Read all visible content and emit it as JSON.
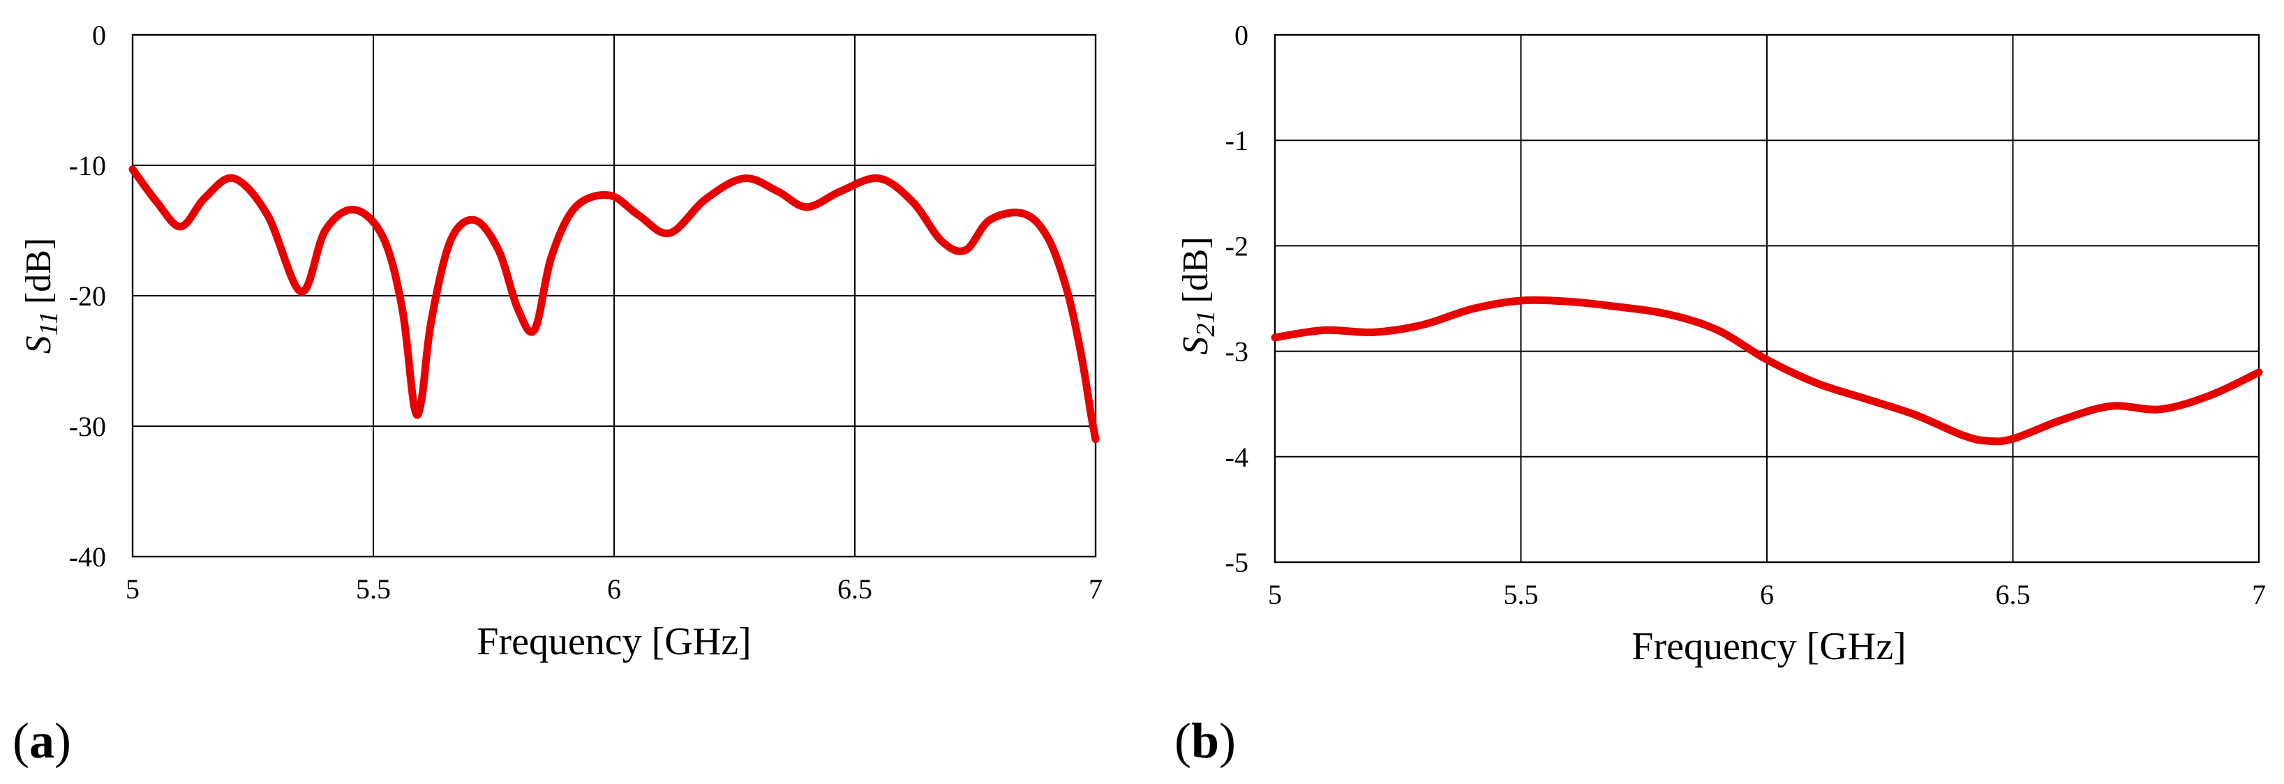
{
  "chart_data": [
    {
      "type": "line",
      "panel_label": "(a)",
      "panel_letter": "a",
      "ylabel_symbol": "S",
      "ylabel_subscript": "11",
      "ylabel_unit": "[dB]",
      "xlabel": "Frequency [GHz]",
      "xlim": [
        5,
        7
      ],
      "ylim": [
        -40,
        0
      ],
      "xticks": [
        5,
        5.5,
        6,
        6.5,
        7
      ],
      "xtick_labels": [
        "5",
        "5.5",
        "6",
        "6.5",
        "7"
      ],
      "yticks": [
        0,
        -10,
        -20,
        -30,
        -40
      ],
      "ytick_labels": [
        "0",
        "-10",
        "-20",
        "-30",
        "-40"
      ],
      "grid": true,
      "series": [
        {
          "color": "#e60000",
          "x": [
            5.0,
            5.05,
            5.1,
            5.15,
            5.21,
            5.28,
            5.35,
            5.4,
            5.46,
            5.52,
            5.56,
            5.585,
            5.6,
            5.62,
            5.66,
            5.71,
            5.76,
            5.8,
            5.835,
            5.87,
            5.92,
            5.99,
            6.05,
            6.115,
            6.19,
            6.27,
            6.34,
            6.4,
            6.47,
            6.55,
            6.62,
            6.68,
            6.73,
            6.78,
            6.85,
            6.9,
            6.94,
            6.97,
            6.99,
            7.0
          ],
          "y": [
            -10.3,
            -12.8,
            -14.7,
            -12.5,
            -11.0,
            -13.8,
            -19.7,
            -15.0,
            -13.4,
            -15.5,
            -21.0,
            -28.5,
            -28.0,
            -22.0,
            -15.8,
            -14.2,
            -16.5,
            -21.0,
            -22.6,
            -17.0,
            -13.2,
            -12.3,
            -13.8,
            -15.2,
            -12.6,
            -11.0,
            -12.0,
            -13.2,
            -12.0,
            -11.0,
            -12.8,
            -15.8,
            -16.5,
            -14.2,
            -13.7,
            -15.5,
            -19.5,
            -24.5,
            -29.0,
            -31.0
          ]
        }
      ]
    },
    {
      "type": "line",
      "panel_label": "(b)",
      "panel_letter": "b",
      "ylabel_symbol": "S",
      "ylabel_subscript": "21",
      "ylabel_unit": "[dB]",
      "xlabel": "Frequency [GHz]",
      "xlim": [
        5,
        7
      ],
      "ylim": [
        -5,
        0
      ],
      "xticks": [
        5,
        5.5,
        6,
        6.5,
        7
      ],
      "xtick_labels": [
        "5",
        "5.5",
        "6",
        "6.5",
        "7"
      ],
      "yticks": [
        0,
        -1,
        -2,
        -3,
        -4,
        -5
      ],
      "ytick_labels": [
        "0",
        "-1",
        "-2",
        "-3",
        "-4",
        "-5"
      ],
      "grid": true,
      "series": [
        {
          "color": "#e60000",
          "x": [
            5.0,
            5.1,
            5.2,
            5.3,
            5.4,
            5.5,
            5.6,
            5.7,
            5.8,
            5.9,
            6.0,
            6.1,
            6.2,
            6.3,
            6.4,
            6.45,
            6.5,
            6.6,
            6.7,
            6.8,
            6.9,
            7.0
          ],
          "y": [
            -2.87,
            -2.8,
            -2.82,
            -2.75,
            -2.6,
            -2.52,
            -2.53,
            -2.58,
            -2.65,
            -2.8,
            -3.08,
            -3.3,
            -3.45,
            -3.6,
            -3.8,
            -3.85,
            -3.83,
            -3.65,
            -3.52,
            -3.55,
            -3.42,
            -3.2
          ]
        }
      ]
    }
  ]
}
